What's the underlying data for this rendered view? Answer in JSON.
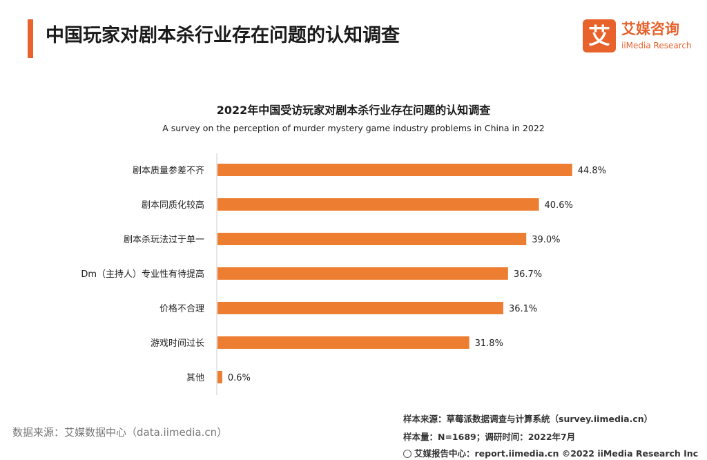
{
  "header": {
    "title": "中国玩家对剧本杀行业存在问题的认知调查",
    "logo_cn": "艾媒咨询",
    "logo_en": "iiMedia Research",
    "logo_mark": "艾"
  },
  "colors": {
    "accent": "#e8622c",
    "bar": "#ed7d31"
  },
  "chart_data": {
    "type": "bar",
    "orientation": "horizontal",
    "title": "2022年中国受访玩家对剧本杀行业存在问题的认知调查",
    "subtitle": "A survey on the perception of murder mystery game industry problems in China in 2022",
    "categories": [
      "剧本质量参差不齐",
      "剧本同质化较高",
      "剧本杀玩法过于单一",
      "Dm（主持人）专业性有待提高",
      "价格不合理",
      "游戏时间过长",
      "其他"
    ],
    "values": [
      44.8,
      40.6,
      39.0,
      36.7,
      36.1,
      31.8,
      0.6
    ],
    "value_labels": [
      "44.8%",
      "40.6%",
      "39.0%",
      "36.7%",
      "36.1%",
      "31.8%",
      "0.6%"
    ],
    "unit": "%",
    "xlim": [
      0,
      45
    ],
    "xlabel": "",
    "ylabel": ""
  },
  "notes": {
    "data_source": "数据来源：艾媒数据中心（data.iimedia.cn）",
    "sample_source": "样本来源：草莓派数据调查与计算系统（survey.iimedia.cn）",
    "sample_size": "样本量：N=1689；调研时间：2022年7月",
    "footer": "艾媒报告中心：report.iimedia.cn   ©2022  iiMedia Research  Inc"
  }
}
